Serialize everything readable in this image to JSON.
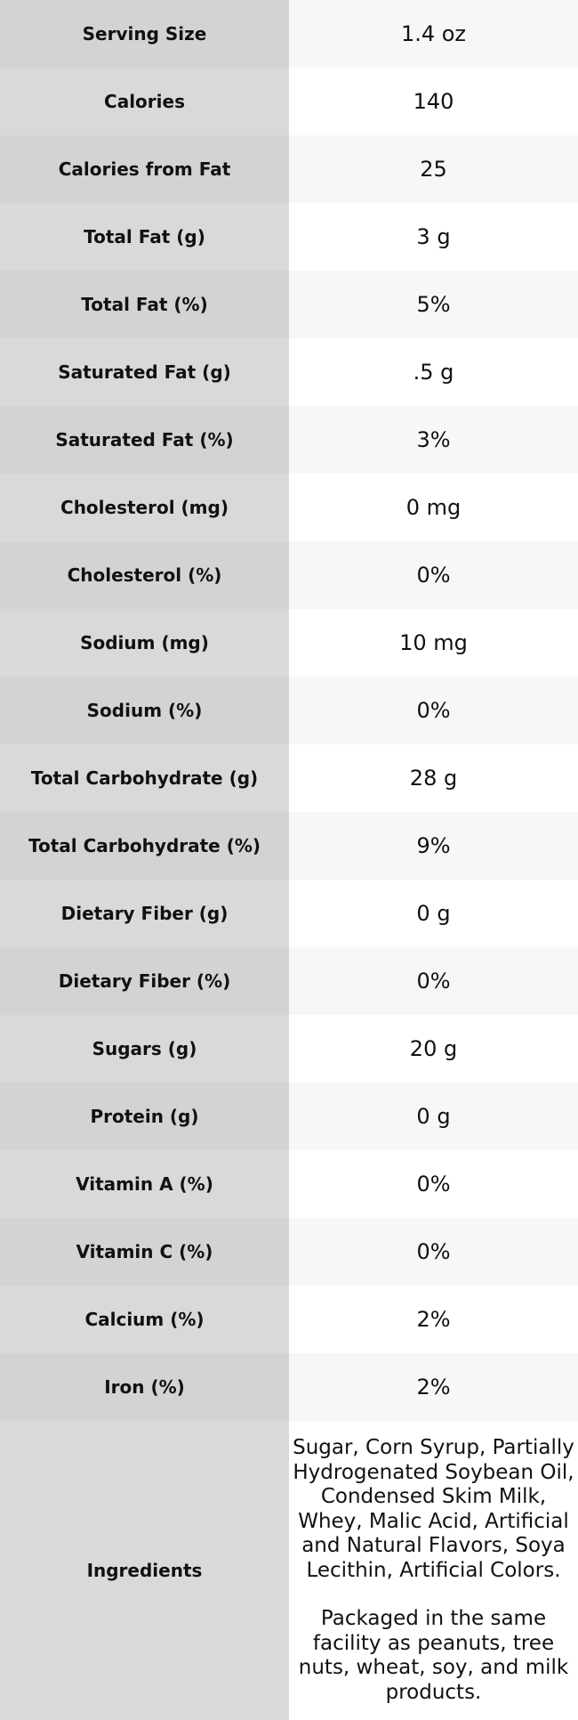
{
  "table": {
    "rows": [
      [
        "Serving Size",
        "1.4 oz"
      ],
      [
        "Calories",
        "140"
      ],
      [
        "Calories from Fat",
        "25"
      ],
      [
        "Total Fat (g)",
        "3 g"
      ],
      [
        "Total Fat (%)",
        "5%"
      ],
      [
        "Saturated Fat (g)",
        ".5 g"
      ],
      [
        "Saturated Fat (%)",
        "3%"
      ],
      [
        "Cholesterol (mg)",
        "0 mg"
      ],
      [
        "Cholesterol (%)",
        "0%"
      ],
      [
        "Sodium (mg)",
        "10 mg"
      ],
      [
        "Sodium (%)",
        "0%"
      ],
      [
        "Total Carbohydrate (g)",
        "28 g"
      ],
      [
        "Total Carbohydrate (%)",
        "9%"
      ],
      [
        "Dietary Fiber (g)",
        "0 g"
      ],
      [
        "Dietary Fiber (%)",
        "0%"
      ],
      [
        "Sugars (g)",
        "20 g"
      ],
      [
        "Protein (g)",
        "0 g"
      ],
      [
        "Vitamin A (%)",
        "0%"
      ],
      [
        "Vitamin C (%)",
        "0%"
      ],
      [
        "Calcium (%)",
        "2%"
      ],
      [
        "Iron (%)",
        "2%"
      ]
    ],
    "ingredients": {
      "label": "Ingredients",
      "paragraphs": [
        "Sugar, Corn Syrup, Partially Hydrogenated Soybean Oil, Condensed Skim Milk, Whey, Malic Acid, Artificial and Natural Flavors, Soya Lecithin, Artificial Colors.",
        "Packaged in the same facility as peanuts, tree nuts, wheat, soy, and milk products."
      ]
    }
  }
}
